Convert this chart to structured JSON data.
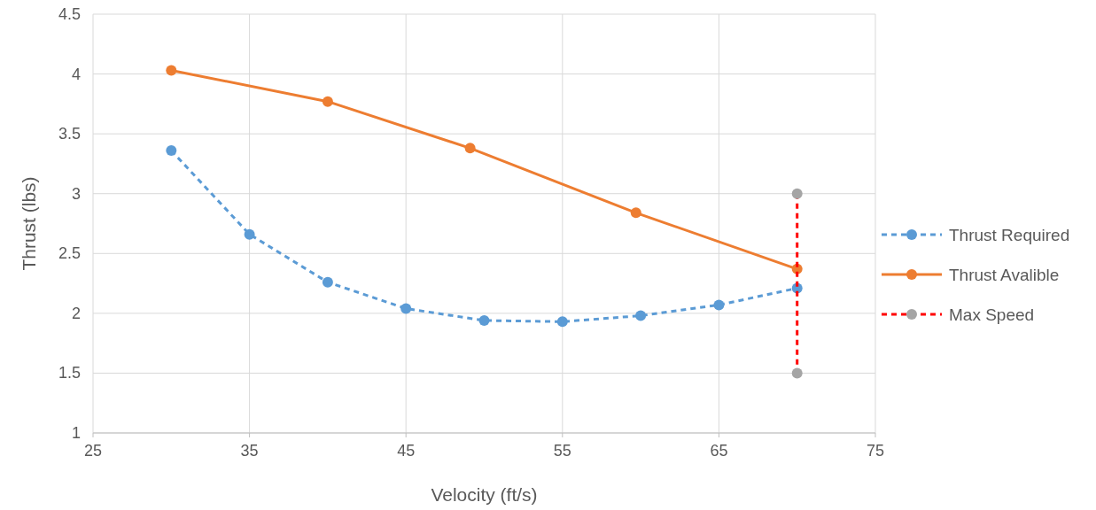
{
  "chart_data": {
    "type": "line",
    "xlabel": "Velocity (ft/s)",
    "ylabel": "Thrust (lbs)",
    "xlim": [
      25,
      75
    ],
    "xticks": [
      25,
      35,
      45,
      55,
      65,
      75
    ],
    "ylim": [
      1,
      4.5
    ],
    "yticks": [
      1,
      1.5,
      2,
      2.5,
      3,
      3.5,
      4,
      4.5
    ],
    "grid": true,
    "legend": "right",
    "marker": "circle",
    "series": [
      {
        "name": "Thrust Required",
        "color": "#5b9bd5",
        "line_style": "dashed",
        "x": [
          30,
          35,
          40,
          45,
          50,
          55,
          60,
          65,
          70
        ],
        "values": [
          3.36,
          2.66,
          2.26,
          2.04,
          1.94,
          1.93,
          1.98,
          2.07,
          2.21
        ]
      },
      {
        "name": "Thrust Avalible",
        "color": "#ed7d31",
        "line_style": "solid",
        "x": [
          30,
          40,
          49.1,
          59.7,
          70
        ],
        "values": [
          4.03,
          3.77,
          3.38,
          2.84,
          2.37
        ]
      },
      {
        "name": "Max Speed",
        "color": "#ff0000",
        "colors": [
          "#a5a5a5",
          "#a5a5a5"
        ],
        "line_style": "dashed",
        "x": [
          70,
          70
        ],
        "values": [
          3,
          1.5
        ]
      }
    ]
  }
}
